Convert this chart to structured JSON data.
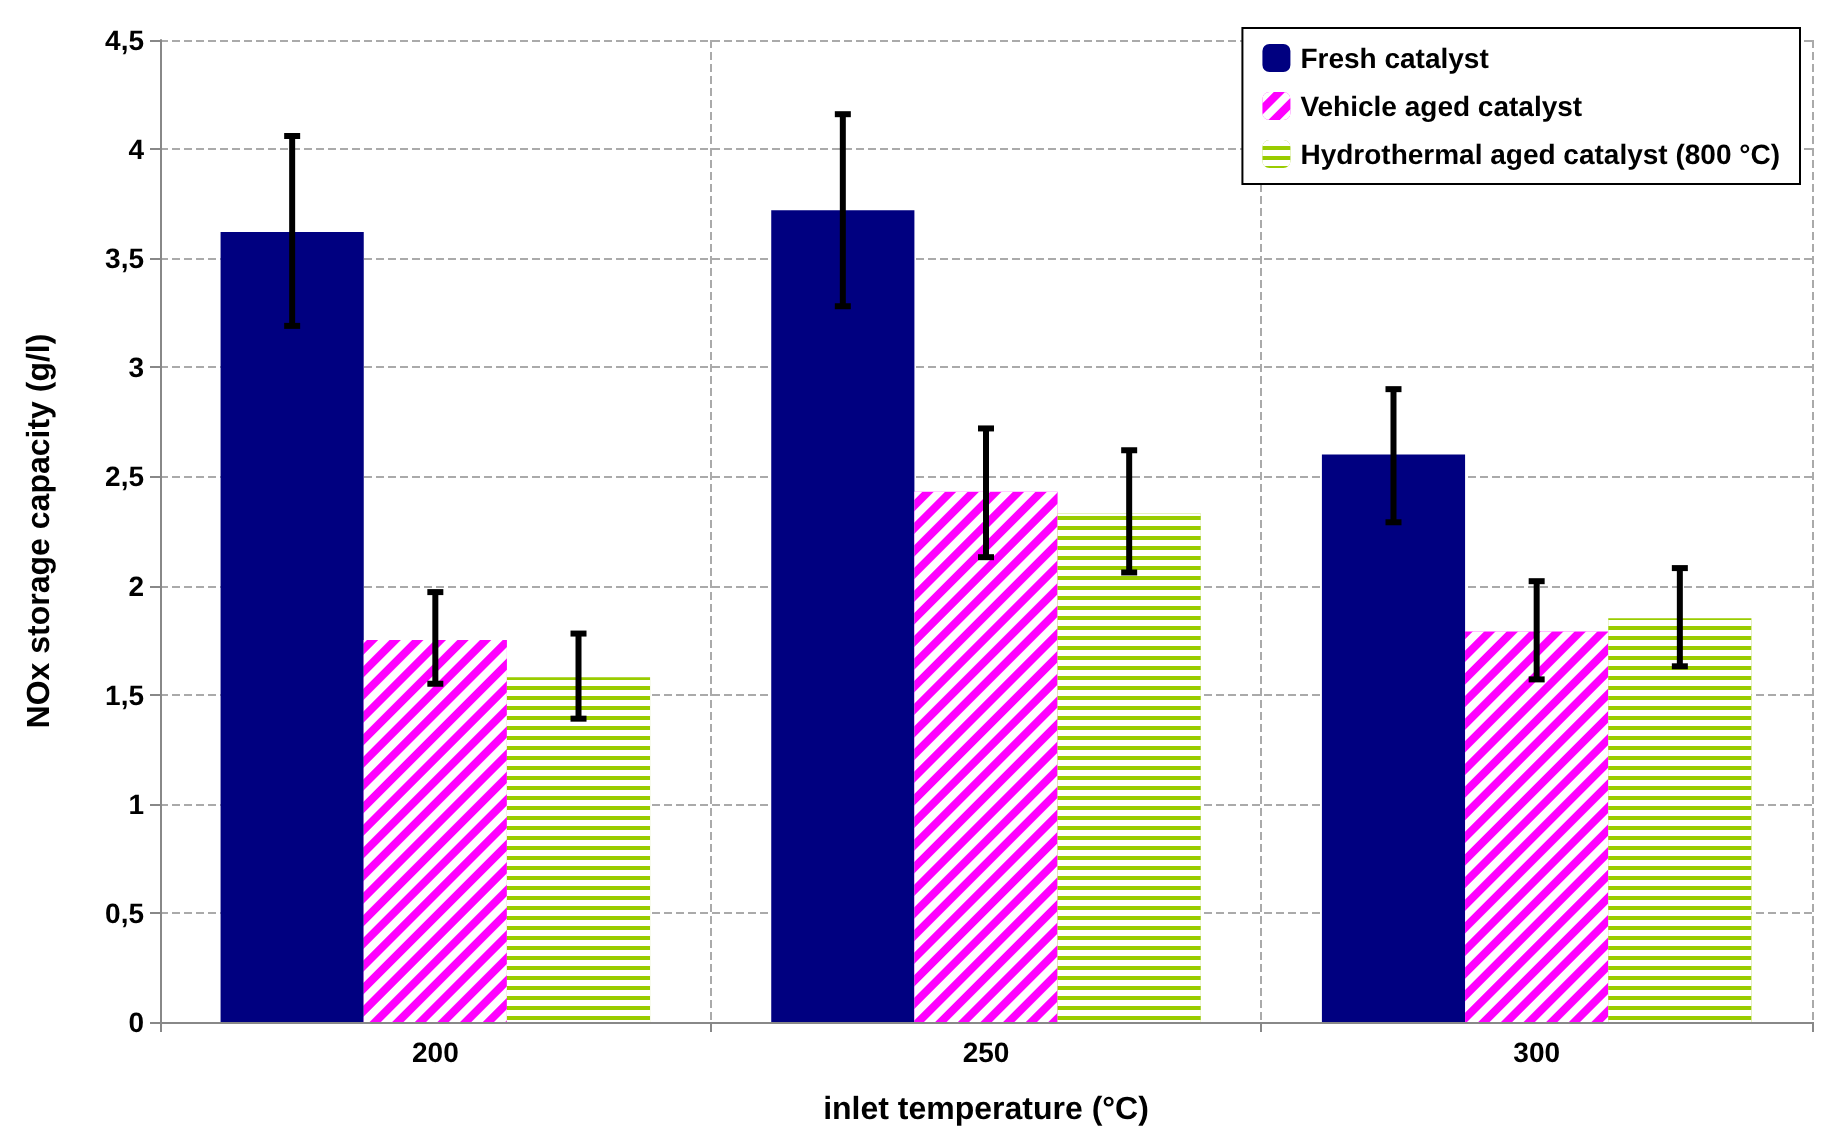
{
  "chart_data": {
    "type": "bar",
    "xlabel": "inlet temperature (°C)",
    "ylabel": "NOx storage capacity (g/l)",
    "categories": [
      "200",
      "250",
      "300"
    ],
    "series": [
      {
        "name": "Fresh catalyst",
        "color": "#000080",
        "values": [
          3.62,
          3.72,
          2.6
        ],
        "errors": [
          [
            3.19,
            4.06
          ],
          [
            3.28,
            4.16
          ],
          [
            2.29,
            2.9
          ]
        ]
      },
      {
        "name": "Vehicle aged catalyst",
        "color": "#ff00ff",
        "values": [
          1.75,
          2.43,
          1.79
        ],
        "errors": [
          [
            1.55,
            1.97
          ],
          [
            2.13,
            2.72
          ],
          [
            1.57,
            2.02
          ]
        ]
      },
      {
        "name": "Hydrothermal aged catalyst (800 °C)",
        "color": "#99cc00",
        "values": [
          1.58,
          2.33,
          1.85
        ],
        "errors": [
          [
            1.39,
            1.78
          ],
          [
            2.06,
            2.62
          ],
          [
            1.63,
            2.08
          ]
        ]
      }
    ],
    "ylim": [
      0,
      4.5
    ],
    "yticks": [
      0,
      {
        "value": 0.5,
        "label": "0,5"
      },
      1,
      {
        "value": 1.5,
        "label": "1,5"
      },
      2,
      {
        "value": 2.5,
        "label": "2,5"
      },
      3,
      {
        "value": 3.5,
        "label": "3,5"
      },
      4,
      {
        "value": 4.5,
        "label": "4,5"
      }
    ],
    "grid": true,
    "legend": "top right"
  }
}
